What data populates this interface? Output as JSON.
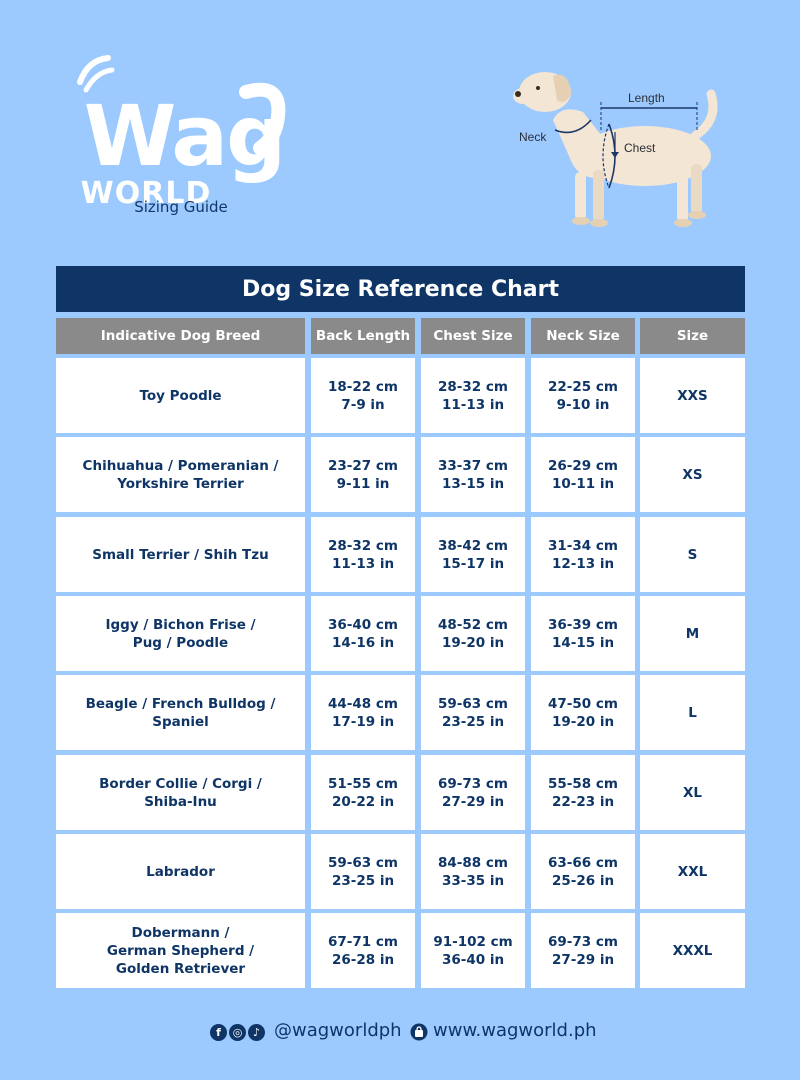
{
  "brand": {
    "logo_word": "Wag",
    "logo_sub": "WORLD",
    "subtitle": "Sizing Guide"
  },
  "diagram": {
    "labels": {
      "length": "Length",
      "neck": "Neck",
      "chest": "Chest"
    }
  },
  "chart": {
    "title": "Dog Size Reference Chart",
    "headers": [
      "Indicative Dog Breed",
      "Back Length",
      "Chest Size",
      "Neck Size",
      "Size"
    ],
    "rows": [
      {
        "breed": [
          "Toy Poodle"
        ],
        "back": [
          "18-22 cm",
          "7-9 in"
        ],
        "chest": [
          "28-32 cm",
          "11-13 in"
        ],
        "neck": [
          "22-25 cm",
          "9-10 in"
        ],
        "size": "XXS"
      },
      {
        "breed": [
          "Chihuahua / Pomeranian /",
          "Yorkshire Terrier"
        ],
        "back": [
          "23-27 cm",
          "9-11 in"
        ],
        "chest": [
          "33-37 cm",
          "13-15 in"
        ],
        "neck": [
          "26-29 cm",
          "10-11 in"
        ],
        "size": "XS"
      },
      {
        "breed": [
          "Small Terrier / Shih Tzu"
        ],
        "back": [
          "28-32 cm",
          "11-13 in"
        ],
        "chest": [
          "38-42 cm",
          "15-17 in"
        ],
        "neck": [
          "31-34 cm",
          "12-13 in"
        ],
        "size": "S"
      },
      {
        "breed": [
          "Iggy / Bichon Frise /",
          "Pug / Poodle"
        ],
        "back": [
          "36-40 cm",
          "14-16 in"
        ],
        "chest": [
          "48-52 cm",
          "19-20 in"
        ],
        "neck": [
          "36-39 cm",
          "14-15 in"
        ],
        "size": "M"
      },
      {
        "breed": [
          "Beagle / French Bulldog /",
          "Spaniel"
        ],
        "back": [
          "44-48 cm",
          "17-19 in"
        ],
        "chest": [
          "59-63 cm",
          "23-25 in"
        ],
        "neck": [
          "47-50 cm",
          "19-20 in"
        ],
        "size": "L"
      },
      {
        "breed": [
          "Border Collie / Corgi /",
          "Shiba-Inu"
        ],
        "back": [
          "51-55 cm",
          "20-22 in"
        ],
        "chest": [
          "69-73 cm",
          "27-29 in"
        ],
        "neck": [
          "55-58 cm",
          "22-23 in"
        ],
        "size": "XL"
      },
      {
        "breed": [
          "Labrador"
        ],
        "back": [
          "59-63 cm",
          "23-25 in"
        ],
        "chest": [
          "84-88 cm",
          "33-35 in"
        ],
        "neck": [
          "63-66 cm",
          "25-26 in"
        ],
        "size": "XXL"
      },
      {
        "breed": [
          "Dobermann /",
          "German Shepherd /",
          "Golden Retriever"
        ],
        "back": [
          "67-71 cm",
          "26-28 in"
        ],
        "chest": [
          "91-102 cm",
          "36-40 in"
        ],
        "neck": [
          "69-73 cm",
          "27-29 in"
        ],
        "size": "XXXL"
      }
    ]
  },
  "footer": {
    "social_icons": [
      "facebook-icon",
      "instagram-icon",
      "tiktok-icon"
    ],
    "handle": "@wagworldph",
    "website_icon": "shopping-bag-icon",
    "website": "www.wagworld.ph"
  },
  "colors": {
    "background": "#9ccaff",
    "navy": "#0e3566",
    "header_gray": "#8a8a8a",
    "cell_bg": "#ffffff"
  }
}
